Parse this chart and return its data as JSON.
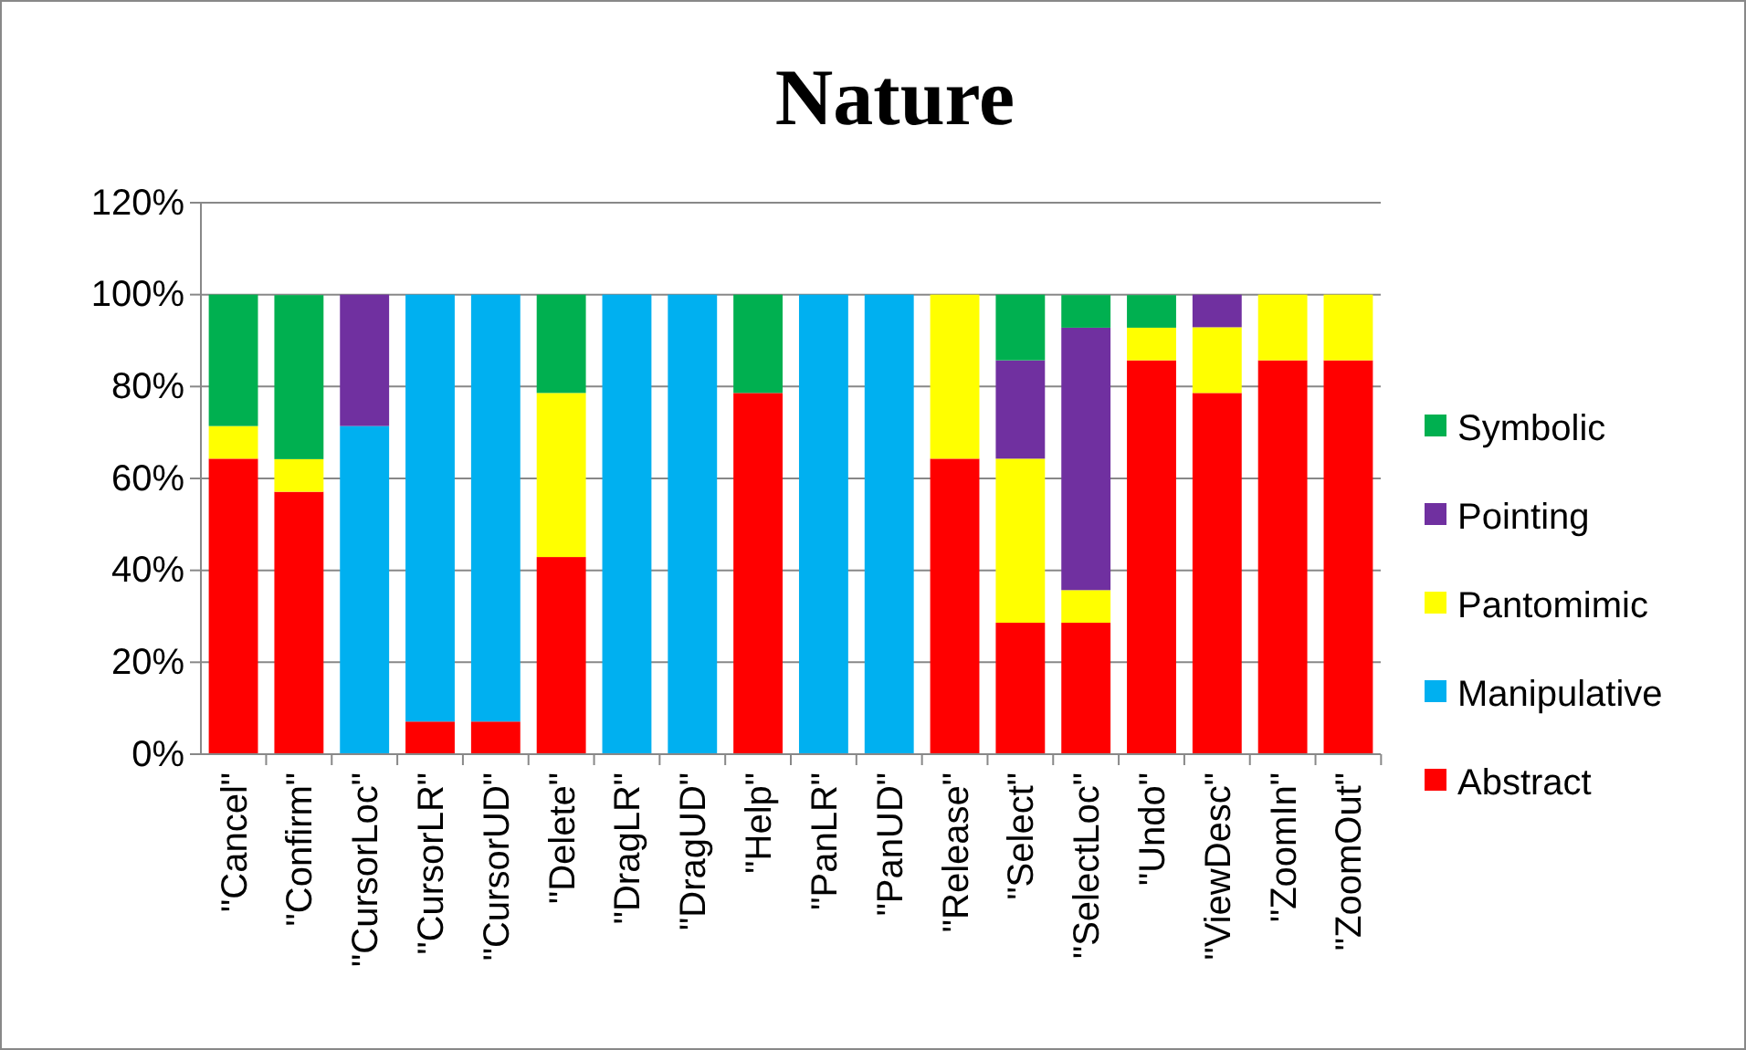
{
  "chart_data": {
    "type": "bar",
    "title": "Nature",
    "stacked": true,
    "categories": [
      "\"Cancel\"",
      "\"Confirm\"",
      "\"CursorLoc\"",
      "\"CursorLR\"",
      "\"CursorUD\"",
      "\"Delete\"",
      "\"DragLR\"",
      "\"DragUD\"",
      "\"Help\"",
      "\"PanLR\"",
      "\"PanUD\"",
      "\"Release\"",
      "\"Select\"",
      "\"SelectLoc\"",
      "\"Undo\"",
      "\"ViewDesc\"",
      "\"ZoomIn\"",
      "\"ZoomOut\""
    ],
    "series": [
      {
        "name": "Abstract",
        "color": "#ff0000",
        "values": [
          64.3,
          57.1,
          0,
          7.1,
          7.1,
          42.9,
          0,
          0,
          78.6,
          0,
          0,
          64.3,
          28.6,
          28.6,
          85.7,
          78.6,
          85.7,
          85.7
        ]
      },
      {
        "name": "Manipulative",
        "color": "#00b0f0",
        "values": [
          0,
          0,
          71.4,
          92.9,
          92.9,
          0,
          100,
          100,
          0,
          100,
          100,
          0,
          0,
          0,
          0,
          0,
          0,
          0
        ]
      },
      {
        "name": "Pantomimic",
        "color": "#ffff00",
        "values": [
          7.1,
          7.1,
          0,
          0,
          0,
          35.7,
          0,
          0,
          0,
          0,
          0,
          35.7,
          35.7,
          7.1,
          7.1,
          14.3,
          14.3,
          14.3
        ]
      },
      {
        "name": "Pointing",
        "color": "#7030a0",
        "values": [
          0,
          0,
          28.6,
          0,
          0,
          0,
          0,
          0,
          0,
          0,
          0,
          0,
          21.4,
          57.1,
          0,
          7.1,
          0,
          0
        ]
      },
      {
        "name": "Symbolic",
        "color": "#00b050",
        "values": [
          28.6,
          35.7,
          0,
          0,
          0,
          21.4,
          0,
          0,
          21.4,
          0,
          0,
          0,
          14.3,
          7.1,
          7.1,
          0,
          0,
          0
        ]
      }
    ],
    "ylim": [
      0,
      120
    ],
    "yticks": [
      {
        "value": 0,
        "label": "0%"
      },
      {
        "value": 20,
        "label": "20%"
      },
      {
        "value": 40,
        "label": "40%"
      },
      {
        "value": 60,
        "label": "60%"
      },
      {
        "value": 80,
        "label": "80%"
      },
      {
        "value": 100,
        "label": "100%"
      },
      {
        "value": 120,
        "label": "120%"
      }
    ],
    "grid": "y",
    "legend": "right"
  }
}
